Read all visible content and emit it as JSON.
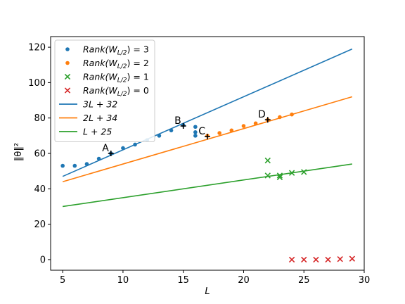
{
  "chart_data": {
    "type": "scatter",
    "xlabel": "L",
    "ylabel": "‖θ‖²",
    "xlim": [
      4.0,
      30.0
    ],
    "ylim": [
      -6.0,
      126.0
    ],
    "xticks": [
      5,
      10,
      15,
      20,
      25,
      30
    ],
    "yticks": [
      0,
      20,
      40,
      60,
      80,
      100,
      120
    ],
    "legend": {
      "placement": "top-left"
    },
    "grid": false,
    "scatter_series": [
      {
        "name": "Rank(W_{L/2}) = 3",
        "legend_label": "Rank(W",
        "legend_sub": "L/2",
        "legend_eq": ") = 3",
        "marker": "dot",
        "color": "#1f77b4",
        "points": [
          [
            5,
            53
          ],
          [
            6,
            53
          ],
          [
            7,
            54
          ],
          [
            8,
            57
          ],
          [
            9,
            60
          ],
          [
            10,
            63
          ],
          [
            11,
            65
          ],
          [
            12,
            67.5
          ],
          [
            13,
            70
          ],
          [
            14,
            73
          ],
          [
            15,
            76
          ],
          [
            16,
            72
          ],
          [
            16,
            70
          ],
          [
            16,
            75
          ]
        ]
      },
      {
        "name": "Rank(W_{L/2}) = 2",
        "legend_label": "Rank(W",
        "legend_sub": "L/2",
        "legend_eq": ") = 2",
        "marker": "dot",
        "color": "#ff7f0e",
        "points": [
          [
            17,
            70
          ],
          [
            18,
            71.5
          ],
          [
            19,
            73
          ],
          [
            20,
            75.5
          ],
          [
            21,
            77
          ],
          [
            22,
            79
          ],
          [
            23,
            80.5
          ],
          [
            24,
            82
          ]
        ]
      },
      {
        "name": "Rank(W_{L/2}) = 1",
        "legend_label": "Rank(W",
        "legend_sub": "L/2",
        "legend_eq": ") = 1",
        "marker": "x",
        "color": "#2ca02c",
        "points": [
          [
            22,
            56
          ],
          [
            22,
            47.5
          ],
          [
            23,
            46.5
          ],
          [
            23,
            47.5
          ],
          [
            24,
            49
          ],
          [
            25,
            49.5
          ]
        ]
      },
      {
        "name": "Rank(W_{L/2}) = 0",
        "legend_label": "Rank(W",
        "legend_sub": "L/2",
        "legend_eq": ") = 0",
        "marker": "x",
        "color": "#d62728",
        "points": [
          [
            24,
            0
          ],
          [
            25,
            0
          ],
          [
            26,
            0
          ],
          [
            27,
            0
          ],
          [
            28,
            0.3
          ],
          [
            29,
            0.5
          ]
        ]
      }
    ],
    "line_series": [
      {
        "name": "3L + 32",
        "color": "#1f77b4",
        "slope": 3,
        "intercept": 32,
        "x": [
          5,
          29
        ]
      },
      {
        "name": "2L + 34",
        "color": "#ff7f0e",
        "slope": 2,
        "intercept": 34,
        "x": [
          5,
          29
        ]
      },
      {
        "name": "L + 25",
        "color": "#2ca02c",
        "slope": 1,
        "intercept": 25,
        "x": [
          5,
          29
        ]
      }
    ],
    "annotations": [
      {
        "label": "A",
        "x": 9,
        "y": 60
      },
      {
        "label": "B",
        "x": 15,
        "y": 75.5
      },
      {
        "label": "C",
        "x": 17,
        "y": 69.5
      },
      {
        "label": "D",
        "x": 22,
        "y": 79
      }
    ]
  }
}
